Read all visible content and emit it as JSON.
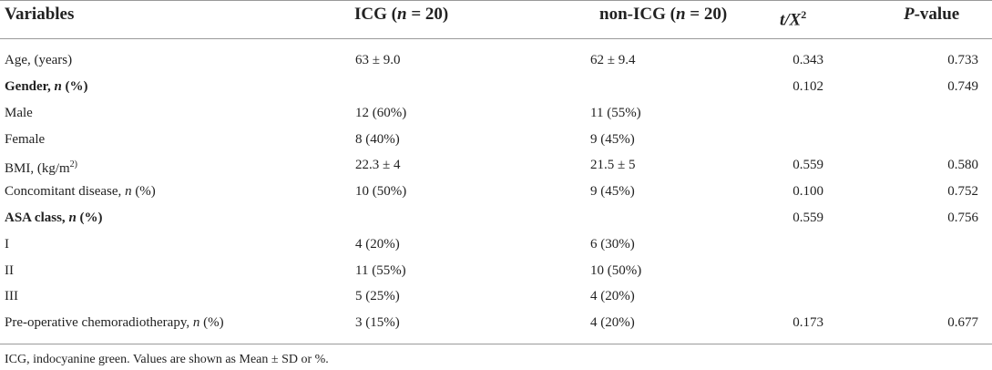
{
  "header": {
    "variables": "Variables",
    "icg": "ICG",
    "icg_n": "(n = 20)",
    "non_icg": "non-ICG",
    "non_icg_n": "(n = 20)",
    "t_x2": "t/X",
    "t_x2_sup": "2",
    "p_value_p": "P",
    "p_value_rest": "-value"
  },
  "rows": [
    {
      "variable": "Age, (years)",
      "icg": "63 ± 9.0",
      "non_icg": "62 ± 9.4",
      "t": "0.343",
      "p": "0.733"
    },
    {
      "variable": "Gender, n (%)",
      "icg": "",
      "non_icg": "",
      "t": "0.102",
      "p": "0.749"
    },
    {
      "variable": "Male",
      "icg": "12 (60%)",
      "non_icg": "11 (55%)",
      "t": "",
      "p": ""
    },
    {
      "variable": "Female",
      "icg": "8 (40%)",
      "non_icg": "9 (45%)",
      "t": "",
      "p": ""
    },
    {
      "variable": "BMI, (kg/m",
      "variable_sup": "2)",
      "icg": "22.3 ± 4",
      "non_icg": "21.5 ± 5",
      "t": "0.559",
      "p": "0.580"
    },
    {
      "variable": "Concomitant disease, n (%)",
      "icg": "10 (50%)",
      "non_icg": "9 (45%)",
      "t": "0.100",
      "p": "0.752"
    },
    {
      "variable": "ASA class, n (%)",
      "icg": "",
      "non_icg": "",
      "t": "0.559",
      "p": "0.756"
    },
    {
      "variable": "I",
      "icg": "4 (20%)",
      "non_icg": "6 (30%)",
      "t": "",
      "p": ""
    },
    {
      "variable": "II",
      "icg": "11 (55%)",
      "non_icg": "10 (50%)",
      "t": "",
      "p": ""
    },
    {
      "variable": "III",
      "icg": "5 (25%)",
      "non_icg": "4 (20%)",
      "t": "",
      "p": ""
    },
    {
      "variable": "Pre-operative chemoradiotherapy, n (%)",
      "icg": "3 (15%)",
      "non_icg": "4 (20%)",
      "t": "0.173",
      "p": "0.677"
    }
  ],
  "footnote": "ICG, indocyanine green. Values are shown as Mean ± SD or %."
}
